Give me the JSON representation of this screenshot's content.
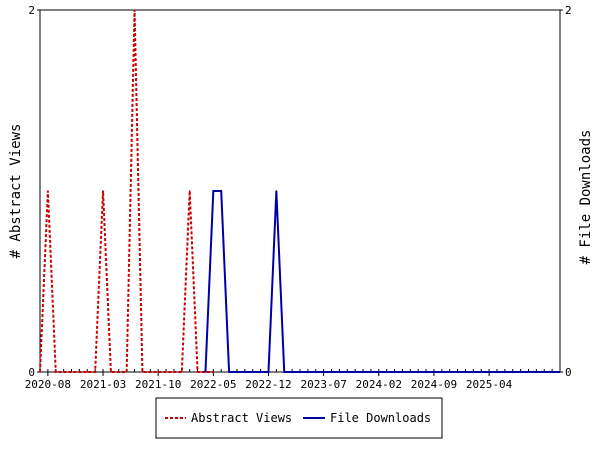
{
  "chart_data": {
    "type": "line",
    "title": "",
    "ylabel_left": "# Abstract Views",
    "ylabel_right": "# File Downloads",
    "ylim": [
      0,
      2
    ],
    "y_ticks": [
      0,
      2
    ],
    "x_range": [
      "2020-07",
      "2026-01"
    ],
    "x_tick_labels": [
      "2020-08",
      "2021-03",
      "2021-10",
      "2022-05",
      "2022-12",
      "2023-07",
      "2024-02",
      "2024-09",
      "2025-04"
    ],
    "grid": false,
    "legend_position": "bottom",
    "series": [
      {
        "name": "Abstract Views",
        "color": "#cc0000",
        "style": "dashed",
        "axis": "left",
        "x": [
          "2020-07",
          "2020-08",
          "2020-09",
          "2020-10",
          "2020-11",
          "2020-12",
          "2021-01",
          "2021-02",
          "2021-03",
          "2021-04",
          "2021-05",
          "2021-06",
          "2021-07",
          "2021-08",
          "2021-09",
          "2021-10",
          "2021-11",
          "2021-12",
          "2022-01",
          "2022-02",
          "2022-03",
          "2022-04",
          "2022-05"
        ],
        "values": [
          0,
          1,
          0,
          0,
          0,
          0,
          0,
          0,
          1,
          0,
          0,
          0,
          2,
          0,
          0,
          0,
          0,
          0,
          0,
          1,
          0,
          0,
          0
        ]
      },
      {
        "name": "File Downloads",
        "color": "#0000aa",
        "style": "solid",
        "axis": "right",
        "x": [
          "2022-04",
          "2022-05",
          "2022-06",
          "2022-07",
          "2022-08",
          "2022-09",
          "2022-10",
          "2022-11",
          "2022-12",
          "2023-01",
          "2023-02",
          "2023-03",
          "2023-04",
          "2023-05",
          "2023-06",
          "2023-07",
          "2023-08",
          "2023-09",
          "2023-10",
          "2023-11",
          "2023-12",
          "2024-01",
          "2024-02",
          "2024-03",
          "2024-04",
          "2024-05",
          "2024-06",
          "2024-07",
          "2024-08",
          "2024-09",
          "2024-10",
          "2024-11",
          "2024-12",
          "2025-01",
          "2025-02",
          "2025-03",
          "2025-04",
          "2025-05",
          "2025-06",
          "2025-07",
          "2025-08",
          "2025-09",
          "2025-10",
          "2025-11",
          "2025-12",
          "2026-01"
        ],
        "values": [
          0,
          1,
          1,
          0,
          0,
          0,
          0,
          0,
          0,
          1,
          0,
          0,
          0,
          0,
          0,
          0,
          0,
          0,
          0,
          0,
          0,
          0,
          0,
          0,
          0,
          0,
          0,
          0,
          0,
          0,
          0,
          0,
          0,
          0,
          0,
          0,
          0,
          0,
          0,
          0,
          0,
          0,
          0,
          0,
          0,
          0
        ]
      }
    ]
  }
}
